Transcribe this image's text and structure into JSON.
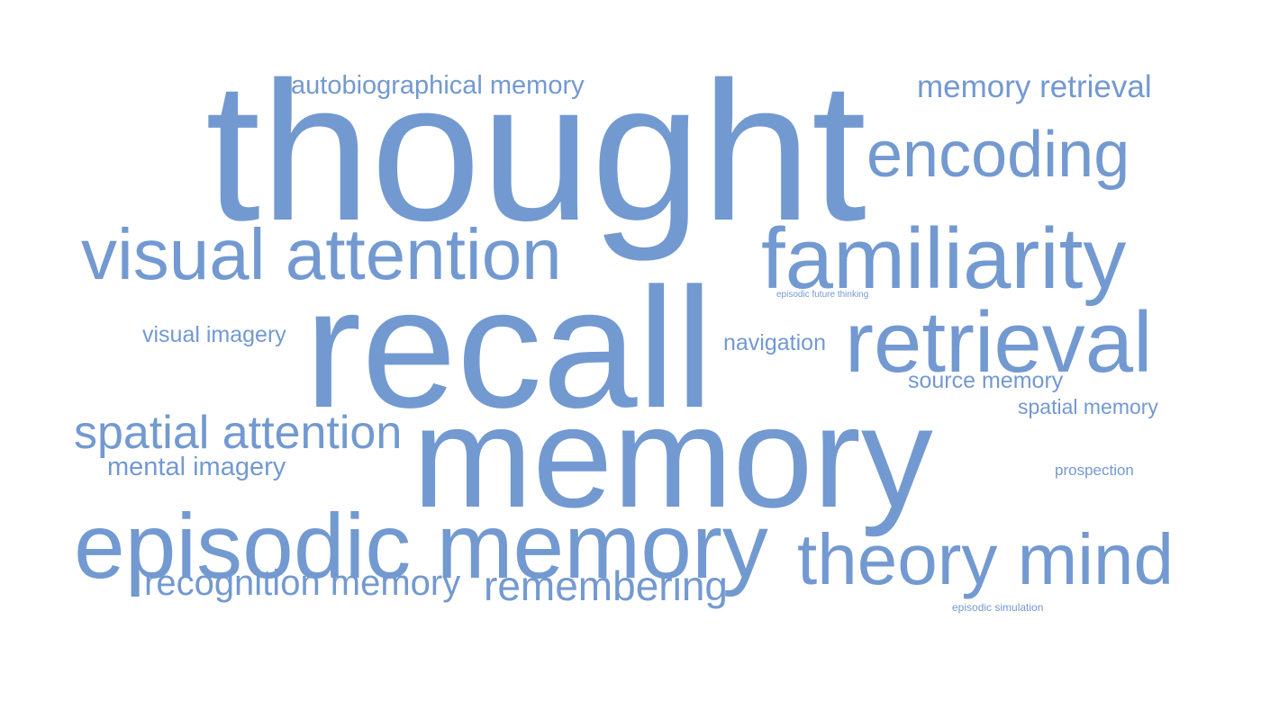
{
  "cloud": {
    "color": "#7399D1",
    "words": [
      {
        "text": "thought"
      },
      {
        "text": "recall"
      },
      {
        "text": "memory"
      },
      {
        "text": "episodic memory"
      },
      {
        "text": "familiarity"
      },
      {
        "text": "retrieval"
      },
      {
        "text": "visual attention"
      },
      {
        "text": "theory mind"
      },
      {
        "text": "encoding"
      },
      {
        "text": "spatial attention"
      },
      {
        "text": "remembering"
      },
      {
        "text": "recognition memory"
      },
      {
        "text": "memory retrieval"
      },
      {
        "text": "autobiographical memory"
      },
      {
        "text": "mental imagery"
      },
      {
        "text": "visual imagery"
      },
      {
        "text": "navigation"
      },
      {
        "text": "source memory"
      },
      {
        "text": "spatial memory"
      },
      {
        "text": "prospection"
      },
      {
        "text": "episodic future thinking"
      },
      {
        "text": "episodic simulation"
      }
    ]
  }
}
